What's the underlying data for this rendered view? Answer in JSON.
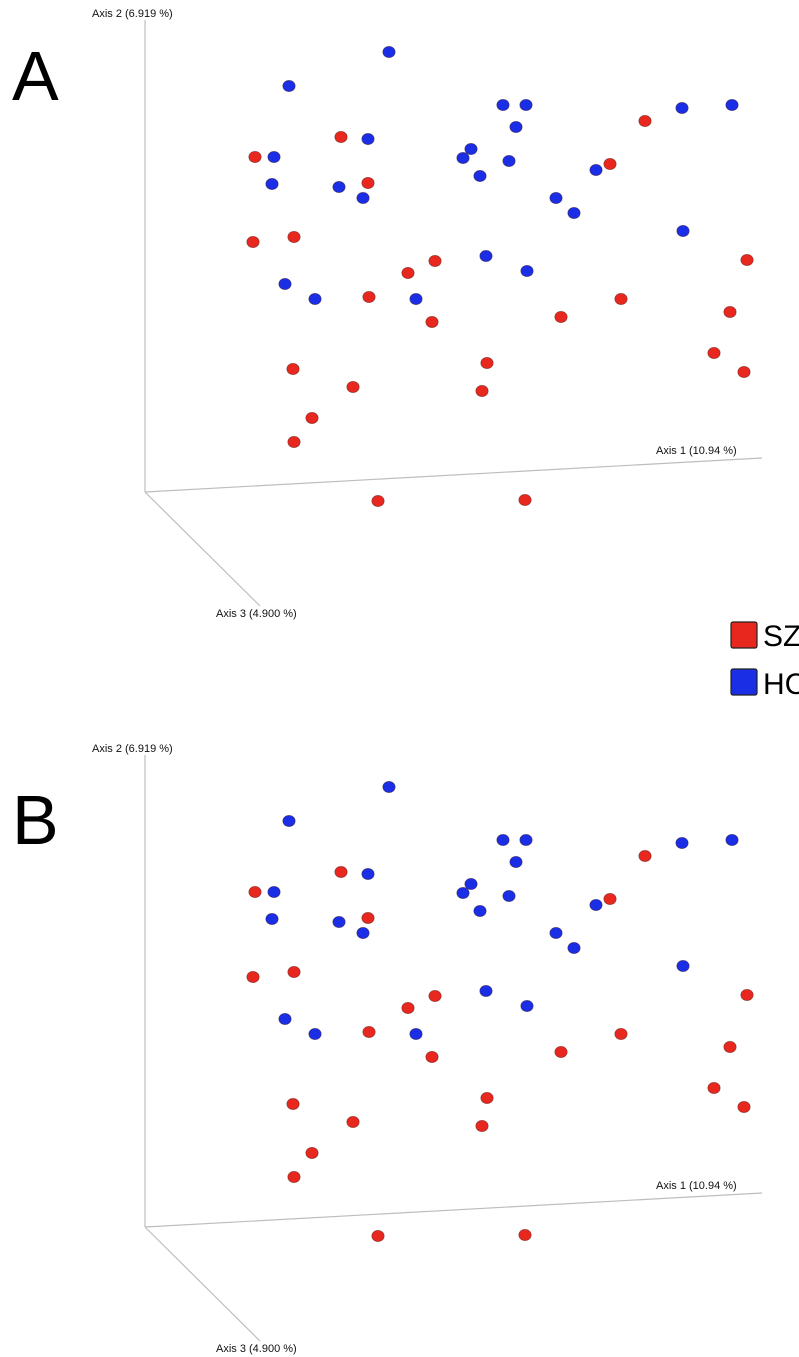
{
  "chart_data": [
    {
      "type": "scatter",
      "panel_label": "A",
      "axes": {
        "axis1": "Axis 1 (10.94 %)",
        "axis2": "Axis 2 (6.919 %)",
        "axis3": "Axis 3 (4.900 %)"
      },
      "series": [
        {
          "name": "SZ",
          "color": "#e8281e",
          "points": [
            [
              255,
              157
            ],
            [
              341,
              137
            ],
            [
              368,
              183
            ],
            [
              253,
              242
            ],
            [
              294,
              237
            ],
            [
              408,
              273
            ],
            [
              435,
              261
            ],
            [
              369,
              297
            ],
            [
              432,
              322
            ],
            [
              293,
              369
            ],
            [
              353,
              387
            ],
            [
              312,
              418
            ],
            [
              294,
              442
            ],
            [
              487,
              363
            ],
            [
              482,
              391
            ],
            [
              378,
              501
            ],
            [
              525,
              500
            ],
            [
              561,
              317
            ],
            [
              621,
              299
            ],
            [
              645,
              121
            ],
            [
              610,
              164
            ],
            [
              747,
              260
            ],
            [
              730,
              312
            ],
            [
              714,
              353
            ],
            [
              744,
              372
            ]
          ]
        },
        {
          "name": "HC",
          "color": "#1a2ee6",
          "points": [
            [
              389,
              52
            ],
            [
              289,
              86
            ],
            [
              274,
              157
            ],
            [
              272,
              184
            ],
            [
              368,
              139
            ],
            [
              339,
              187
            ],
            [
              363,
              198
            ],
            [
              285,
              284
            ],
            [
              315,
              299
            ],
            [
              416,
              299
            ],
            [
              463,
              158
            ],
            [
              471,
              149
            ],
            [
              503,
              105
            ],
            [
              526,
              105
            ],
            [
              516,
              127
            ],
            [
              509,
              161
            ],
            [
              480,
              176
            ],
            [
              486,
              256
            ],
            [
              527,
              271
            ],
            [
              556,
              198
            ],
            [
              574,
              213
            ],
            [
              596,
              170
            ],
            [
              682,
              108
            ],
            [
              732,
              105
            ],
            [
              683,
              231
            ]
          ]
        }
      ]
    },
    {
      "type": "scatter",
      "panel_label": "B",
      "axes": {
        "axis1": "Axis 1 (10.94 %)",
        "axis2": "Axis 2 (6.919 %)",
        "axis3": "Axis 3 (4.900 %)"
      },
      "series": [
        {
          "name": "SZ",
          "color": "#e8281e",
          "points": [
            [
              255,
              157
            ],
            [
              341,
              137
            ],
            [
              368,
              183
            ],
            [
              253,
              242
            ],
            [
              294,
              237
            ],
            [
              408,
              273
            ],
            [
              435,
              261
            ],
            [
              369,
              297
            ],
            [
              432,
              322
            ],
            [
              293,
              369
            ],
            [
              353,
              387
            ],
            [
              312,
              418
            ],
            [
              294,
              442
            ],
            [
              487,
              363
            ],
            [
              482,
              391
            ],
            [
              378,
              501
            ],
            [
              525,
              500
            ],
            [
              561,
              317
            ],
            [
              621,
              299
            ],
            [
              645,
              121
            ],
            [
              610,
              164
            ],
            [
              747,
              260
            ],
            [
              730,
              312
            ],
            [
              714,
              353
            ],
            [
              744,
              372
            ]
          ]
        },
        {
          "name": "HC",
          "color": "#1a2ee6",
          "points": [
            [
              389,
              52
            ],
            [
              289,
              86
            ],
            [
              274,
              157
            ],
            [
              272,
              184
            ],
            [
              368,
              139
            ],
            [
              339,
              187
            ],
            [
              363,
              198
            ],
            [
              285,
              284
            ],
            [
              315,
              299
            ],
            [
              416,
              299
            ],
            [
              463,
              158
            ],
            [
              471,
              149
            ],
            [
              503,
              105
            ],
            [
              526,
              105
            ],
            [
              516,
              127
            ],
            [
              509,
              161
            ],
            [
              480,
              176
            ],
            [
              486,
              256
            ],
            [
              527,
              271
            ],
            [
              556,
              198
            ],
            [
              574,
              213
            ],
            [
              596,
              170
            ],
            [
              682,
              108
            ],
            [
              732,
              105
            ],
            [
              683,
              231
            ]
          ]
        }
      ]
    }
  ],
  "legend": {
    "placement": "right",
    "items": [
      {
        "label": "SZ",
        "color": "#e8281e"
      },
      {
        "label": "HC",
        "color": "#1a2ee6"
      }
    ]
  }
}
